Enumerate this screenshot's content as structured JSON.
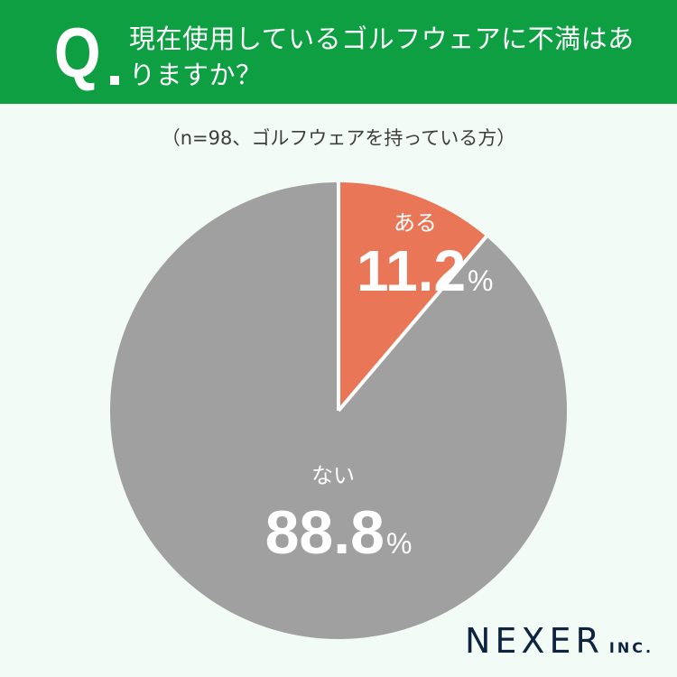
{
  "header": {
    "q_mark": "Q",
    "question": "現在使用しているゴルフウェアに不満はありますか？",
    "bg_color": "#0f9f43"
  },
  "subtitle": "（n=98、ゴルフウェアを持っている方）",
  "chart_data": {
    "type": "pie",
    "title": "現在使用しているゴルフウェアに不満はありますか？",
    "subtitle": "（n=98、ゴルフウェアを持っている方）",
    "n": 98,
    "categories": [
      "ある",
      "ない"
    ],
    "values": [
      11.2,
      88.8
    ],
    "unit": "%",
    "colors": [
      "#ea7658",
      "#a0a0a0"
    ],
    "start_angle": "12 o'clock",
    "direction": "clockwise",
    "legend": "none (labels inside slices)"
  },
  "labels": {
    "aru": {
      "category": "ある",
      "value": "11.2",
      "unit": "%"
    },
    "nai": {
      "category": "ない",
      "value": "88.8",
      "unit": "%"
    }
  },
  "logo": {
    "name": "NEXER",
    "suffix": "INC."
  }
}
